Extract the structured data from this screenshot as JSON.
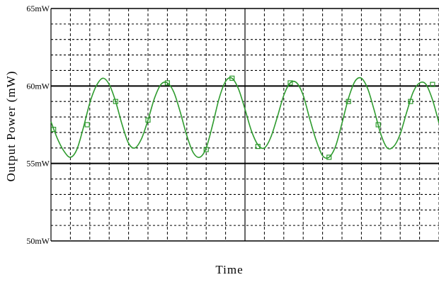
{
  "chart_data": {
    "type": "line",
    "title": "",
    "xlabel": "Time",
    "ylabel": "Output Power (mW)",
    "ylim": [
      50,
      65
    ],
    "yticks": [
      {
        "value": 65,
        "label": "65mW"
      },
      {
        "value": 60,
        "label": "60mW"
      },
      {
        "value": 55,
        "label": "55mW"
      },
      {
        "value": 50,
        "label": "50mW"
      }
    ],
    "grid": true,
    "legend": "none",
    "series": [
      {
        "color": "#2e9b2e",
        "x": [
          0,
          0.5,
          1,
          1.5,
          2,
          2.5,
          3,
          3.5,
          4,
          4.5,
          5,
          5.5,
          6,
          6.5,
          7,
          7.5,
          8,
          8.5,
          9,
          9.5,
          10,
          10.5,
          11,
          11.5,
          12,
          12.5,
          13,
          13.5,
          14,
          14.5,
          15,
          15.5,
          16,
          16.5,
          17,
          17.5,
          18,
          18.5,
          19,
          19.5,
          20,
          20.5,
          21,
          21.5,
          22,
          22.5,
          23,
          23.5,
          24,
          24.5,
          25,
          25.5,
          26,
          26.5,
          27,
          27.5,
          28,
          28.5,
          29,
          29.5,
          30
        ],
        "values": [
          57.7,
          56.6,
          55.8,
          55.4,
          55.9,
          57.3,
          58.9,
          60.0,
          60.5,
          60.1,
          59.0,
          57.5,
          56.3,
          56.0,
          56.6,
          57.8,
          59.2,
          60.1,
          60.2,
          59.6,
          58.3,
          56.8,
          55.7,
          55.4,
          56.0,
          57.5,
          59.2,
          60.3,
          60.5,
          59.8,
          58.5,
          57.1,
          56.2,
          56.0,
          56.7,
          58.0,
          59.4,
          60.2,
          60.2,
          59.4,
          57.9,
          56.5,
          55.5,
          55.4,
          56.1,
          57.6,
          59.2,
          60.3,
          60.5,
          59.8,
          58.4,
          56.9,
          56.0,
          56.1,
          56.9,
          58.3,
          59.6,
          60.2,
          60.1,
          59.1,
          57.6
        ],
        "markers": [
          {
            "x": 0.2,
            "y": 57.2
          },
          {
            "x": 2.8,
            "y": 57.5
          },
          {
            "x": 5.0,
            "y": 59.0
          },
          {
            "x": 7.5,
            "y": 57.8
          },
          {
            "x": 9.0,
            "y": 60.2
          },
          {
            "x": 12.0,
            "y": 55.9
          },
          {
            "x": 14.0,
            "y": 60.5
          },
          {
            "x": 16.0,
            "y": 56.1
          },
          {
            "x": 18.5,
            "y": 60.2
          },
          {
            "x": 21.5,
            "y": 55.4
          },
          {
            "x": 23.0,
            "y": 59.0
          },
          {
            "x": 25.3,
            "y": 57.5
          },
          {
            "x": 27.8,
            "y": 59.0
          },
          {
            "x": 29.5,
            "y": 60.1
          }
        ]
      }
    ]
  }
}
